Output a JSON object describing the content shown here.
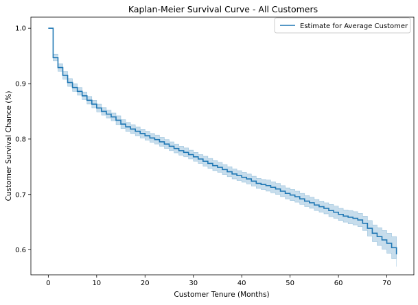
{
  "chart_data": {
    "type": "line",
    "title": "Kaplan-Meier Survival Curve - All Customers",
    "xlabel": "Customer Tenure (Months)",
    "ylabel": "Customer Survival Chance (%)",
    "xlim": [
      -3.6,
      75.6
    ],
    "ylim": [
      0.555,
      1.02
    ],
    "xticks": [
      0,
      10,
      20,
      30,
      40,
      50,
      60,
      70
    ],
    "xtick_labels": [
      "0",
      "10",
      "20",
      "30",
      "40",
      "50",
      "60",
      "70"
    ],
    "yticks": [
      0.6,
      0.7,
      0.8,
      0.9,
      1.0
    ],
    "ytick_labels": [
      "0.6",
      "0.7",
      "0.8",
      "0.9",
      "1.0"
    ],
    "grid": false,
    "legend_position": "top-right",
    "series": [
      {
        "name": "Estimate for Average Customer",
        "color": "#1f77b4",
        "band_color": "#1f77b4",
        "x": [
          0,
          1,
          2,
          3,
          4,
          5,
          6,
          7,
          8,
          9,
          10,
          11,
          12,
          13,
          14,
          15,
          16,
          17,
          18,
          19,
          20,
          21,
          22,
          23,
          24,
          25,
          26,
          27,
          28,
          29,
          30,
          31,
          32,
          33,
          34,
          35,
          36,
          37,
          38,
          39,
          40,
          41,
          42,
          43,
          44,
          45,
          46,
          47,
          48,
          49,
          50,
          51,
          52,
          53,
          54,
          55,
          56,
          57,
          58,
          59,
          60,
          61,
          62,
          63,
          64,
          65,
          66,
          67,
          68,
          69,
          70,
          71,
          72
        ],
        "y": [
          1.0,
          0.947,
          0.929,
          0.915,
          0.902,
          0.893,
          0.886,
          0.878,
          0.87,
          0.863,
          0.856,
          0.85,
          0.845,
          0.84,
          0.834,
          0.827,
          0.822,
          0.818,
          0.814,
          0.81,
          0.806,
          0.802,
          0.799,
          0.795,
          0.791,
          0.787,
          0.783,
          0.779,
          0.776,
          0.772,
          0.768,
          0.764,
          0.76,
          0.756,
          0.752,
          0.749,
          0.745,
          0.741,
          0.737,
          0.734,
          0.731,
          0.728,
          0.724,
          0.72,
          0.718,
          0.716,
          0.713,
          0.71,
          0.706,
          0.702,
          0.699,
          0.696,
          0.692,
          0.688,
          0.685,
          0.681,
          0.678,
          0.675,
          0.671,
          0.668,
          0.664,
          0.661,
          0.659,
          0.657,
          0.654,
          0.648,
          0.639,
          0.63,
          0.624,
          0.618,
          0.612,
          0.604,
          0.592
        ],
        "lower": [
          1.0,
          0.941,
          0.922,
          0.908,
          0.895,
          0.886,
          0.879,
          0.871,
          0.863,
          0.856,
          0.849,
          0.843,
          0.838,
          0.833,
          0.826,
          0.819,
          0.814,
          0.81,
          0.806,
          0.802,
          0.798,
          0.794,
          0.791,
          0.787,
          0.783,
          0.779,
          0.775,
          0.771,
          0.768,
          0.764,
          0.76,
          0.756,
          0.751,
          0.747,
          0.743,
          0.74,
          0.736,
          0.732,
          0.728,
          0.725,
          0.722,
          0.719,
          0.715,
          0.711,
          0.709,
          0.706,
          0.703,
          0.7,
          0.696,
          0.692,
          0.689,
          0.686,
          0.682,
          0.678,
          0.675,
          0.671,
          0.668,
          0.665,
          0.66,
          0.657,
          0.653,
          0.65,
          0.647,
          0.645,
          0.642,
          0.635,
          0.625,
          0.615,
          0.608,
          0.601,
          0.594,
          0.584,
          0.57
        ],
        "upper": [
          1.0,
          0.953,
          0.936,
          0.922,
          0.909,
          0.9,
          0.893,
          0.885,
          0.877,
          0.87,
          0.863,
          0.857,
          0.852,
          0.847,
          0.842,
          0.835,
          0.83,
          0.826,
          0.822,
          0.818,
          0.814,
          0.81,
          0.807,
          0.803,
          0.799,
          0.795,
          0.791,
          0.787,
          0.784,
          0.78,
          0.776,
          0.772,
          0.769,
          0.765,
          0.761,
          0.758,
          0.754,
          0.75,
          0.746,
          0.743,
          0.74,
          0.737,
          0.733,
          0.729,
          0.727,
          0.726,
          0.723,
          0.72,
          0.716,
          0.712,
          0.709,
          0.706,
          0.702,
          0.698,
          0.695,
          0.691,
          0.688,
          0.685,
          0.682,
          0.679,
          0.675,
          0.672,
          0.671,
          0.669,
          0.666,
          0.661,
          0.653,
          0.645,
          0.64,
          0.635,
          0.63,
          0.624,
          0.614
        ]
      }
    ]
  }
}
